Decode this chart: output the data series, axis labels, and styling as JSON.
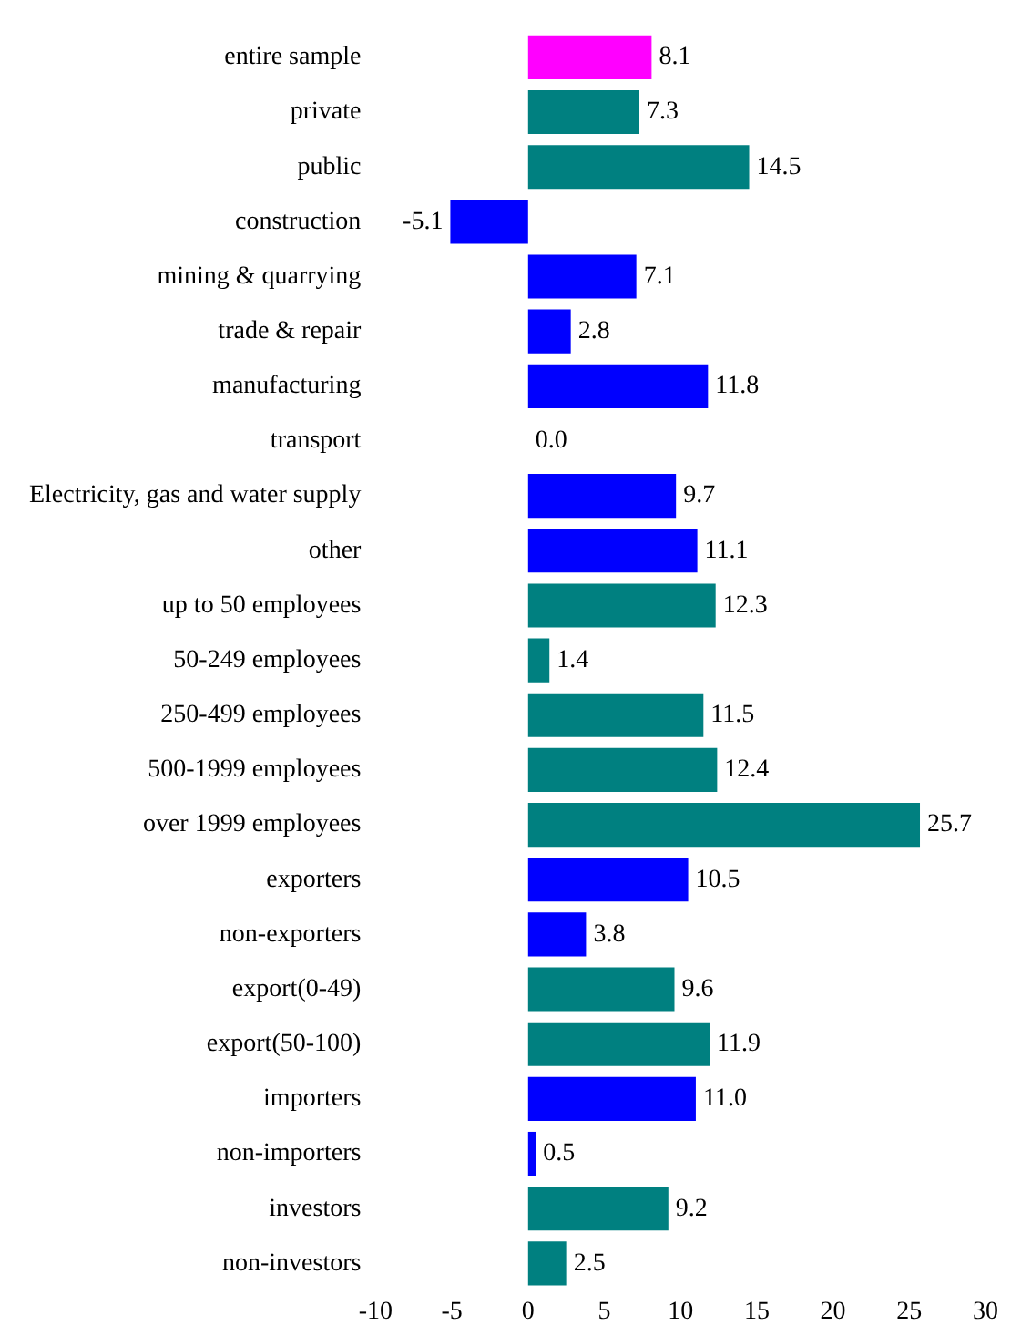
{
  "chart_data": {
    "type": "bar",
    "orientation": "horizontal",
    "categories": [
      "entire sample",
      "private",
      "public",
      "construction",
      "mining & quarrying",
      "trade & repair",
      "manufacturing",
      "transport",
      "Electricity, gas and water supply",
      "other",
      "up to 50 employees",
      "50-249 employees",
      "250-499 employees",
      "500-1999 employees",
      "over 1999 employees",
      "exporters",
      "non-exporters",
      "export(0-49)",
      "export(50-100)",
      "importers",
      "non-importers",
      "investors",
      "non-investors"
    ],
    "values": [
      8.1,
      7.3,
      14.5,
      -5.1,
      7.1,
      2.8,
      11.8,
      0.0,
      9.7,
      11.1,
      12.3,
      1.4,
      11.5,
      12.4,
      25.7,
      10.5,
      3.8,
      9.6,
      11.9,
      11.0,
      0.5,
      9.2,
      2.5
    ],
    "value_labels": [
      "8.1",
      "7.3",
      "14.5",
      "-5.1",
      "7.1",
      "2.8",
      "11.8",
      "0.0",
      "9.7",
      "11.1",
      "12.3",
      "1.4",
      "11.5",
      "12.4",
      "25.7",
      "10.5",
      "3.8",
      "9.6",
      "11.9",
      "11.0",
      "0.5",
      "9.2",
      "2.5"
    ],
    "colors": [
      "#ff00ff",
      "#008080",
      "#008080",
      "#0000ff",
      "#0000ff",
      "#0000ff",
      "#0000ff",
      "#0000ff",
      "#0000ff",
      "#0000ff",
      "#008080",
      "#008080",
      "#008080",
      "#008080",
      "#008080",
      "#0000ff",
      "#0000ff",
      "#008080",
      "#008080",
      "#0000ff",
      "#0000ff",
      "#008080",
      "#008080"
    ],
    "xlim": [
      -10,
      30
    ],
    "xticks": [
      -10,
      -5,
      0,
      5,
      10,
      15,
      20,
      25,
      30
    ],
    "grid": false,
    "legend": false
  }
}
